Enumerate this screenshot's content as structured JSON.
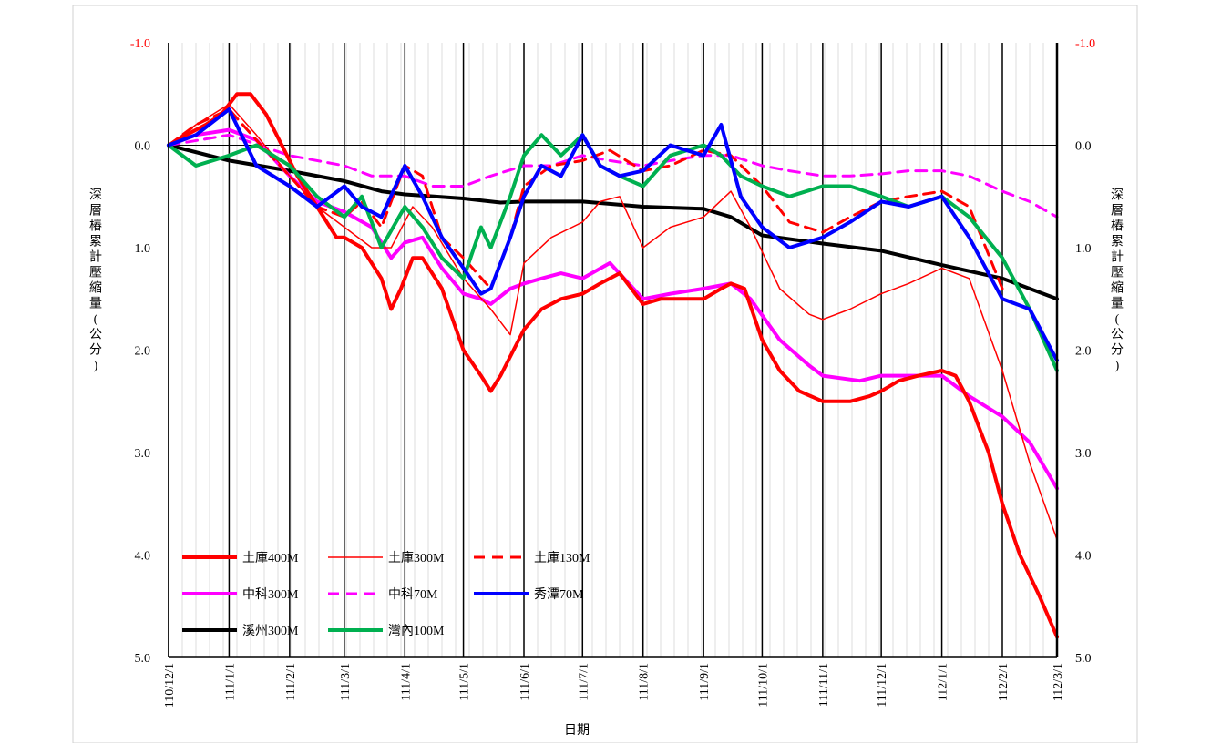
{
  "chart_data": {
    "type": "line",
    "title": "",
    "xlabel": "日期",
    "ylabel": "深層樁累計壓縮量(公分)",
    "ylabel_right": "深層樁累計壓縮量(公分)",
    "y_reversed": true,
    "ylim": [
      -1.0,
      5.0
    ],
    "yticks": [
      "-1.0",
      "0.0",
      "1.0",
      "2.0",
      "3.0",
      "4.0",
      "5.0"
    ],
    "x_start": "110/12/1",
    "x_end": "112/3/1",
    "xticks": [
      "110/12/1",
      "111/1/1",
      "111/2/1",
      "111/3/1",
      "111/4/1",
      "111/5/1",
      "111/6/1",
      "111/7/1",
      "111/8/1",
      "111/9/1",
      "111/10/1",
      "111/11/1",
      "111/12/1",
      "112/1/1",
      "112/2/1",
      "112/3/1"
    ],
    "grid": "vertical",
    "legend_position": "bottom-left",
    "series": [
      {
        "name": "土庫400M",
        "color": "#ff0000",
        "style": "solid-thick",
        "x": [
          "110/12/1",
          "110/12/10",
          "110/12/20",
          "110/12/28",
          "111/1/5",
          "111/1/12",
          "111/1/20",
          "111/1/28",
          "111/2/5",
          "111/2/15",
          "111/2/25",
          "111/3/1",
          "111/3/10",
          "111/3/20",
          "111/3/25",
          "111/3/30",
          "111/4/5",
          "111/4/10",
          "111/4/20",
          "111/5/1",
          "111/5/10",
          "111/5/15",
          "111/5/20",
          "111/5/28",
          "111/6/1",
          "111/6/10",
          "111/6/20",
          "111/7/1",
          "111/7/10",
          "111/7/20",
          "111/8/1",
          "111/8/10",
          "111/8/20",
          "111/9/1",
          "111/9/10",
          "111/9/15",
          "111/9/22",
          "111/10/1",
          "111/10/10",
          "111/10/20",
          "111/11/1",
          "111/11/15",
          "111/11/25",
          "111/12/1",
          "111/12/10",
          "111/12/20",
          "112/1/1",
          "112/1/8",
          "112/1/15",
          "112/1/25",
          "112/2/1",
          "112/2/10",
          "112/2/20",
          "112/3/1"
        ],
        "y": [
          0.0,
          -0.1,
          -0.2,
          -0.3,
          -0.5,
          -0.5,
          -0.3,
          0.0,
          0.3,
          0.6,
          0.9,
          0.9,
          1.0,
          1.3,
          1.6,
          1.4,
          1.1,
          1.1,
          1.4,
          2.0,
          2.25,
          2.4,
          2.25,
          1.95,
          1.8,
          1.6,
          1.5,
          1.45,
          1.35,
          1.25,
          1.55,
          1.5,
          1.5,
          1.5,
          1.4,
          1.35,
          1.4,
          1.9,
          2.2,
          2.4,
          2.5,
          2.5,
          2.45,
          2.4,
          2.3,
          2.25,
          2.2,
          2.25,
          2.5,
          3.0,
          3.5,
          4.0,
          4.4,
          4.8
        ]
      },
      {
        "name": "土庫300M",
        "color": "#ff0000",
        "style": "solid-thin",
        "x": [
          "110/12/1",
          "110/12/15",
          "111/1/1",
          "111/1/15",
          "111/2/1",
          "111/2/15",
          "111/3/1",
          "111/3/15",
          "111/3/25",
          "111/4/5",
          "111/4/15",
          "111/5/1",
          "111/5/15",
          "111/5/25",
          "111/6/1",
          "111/6/15",
          "111/7/1",
          "111/7/10",
          "111/7/20",
          "111/8/1",
          "111/8/15",
          "111/9/1",
          "111/9/15",
          "111/9/25",
          "111/10/10",
          "111/10/25",
          "111/11/1",
          "111/11/15",
          "111/12/1",
          "111/12/15",
          "112/1/1",
          "112/1/15",
          "112/2/1",
          "112/2/15",
          "112/3/1"
        ],
        "y": [
          0.0,
          -0.2,
          -0.4,
          -0.1,
          0.3,
          0.6,
          0.8,
          1.0,
          1.0,
          0.6,
          0.8,
          1.3,
          1.6,
          1.85,
          1.15,
          0.9,
          0.75,
          0.55,
          0.5,
          1.0,
          0.8,
          0.7,
          0.45,
          0.8,
          1.4,
          1.65,
          1.7,
          1.6,
          1.45,
          1.35,
          1.2,
          1.3,
          2.2,
          3.1,
          3.85
        ]
      },
      {
        "name": "土庫130M",
        "color": "#ff0000",
        "style": "dashed",
        "x": [
          "110/12/1",
          "110/12/15",
          "111/1/1",
          "111/1/15",
          "111/2/1",
          "111/2/15",
          "111/3/1",
          "111/3/10",
          "111/3/20",
          "111/4/1",
          "111/4/10",
          "111/4/20",
          "111/5/1",
          "111/5/15",
          "111/5/25",
          "111/6/1",
          "111/6/15",
          "111/7/1",
          "111/7/15",
          "111/8/1",
          "111/8/15",
          "111/9/1",
          "111/9/15",
          "111/10/1",
          "111/10/15",
          "111/11/1",
          "111/11/15",
          "111/12/1",
          "111/12/15",
          "112/1/1",
          "112/1/15",
          "112/2/1"
        ],
        "y": [
          0.0,
          -0.2,
          -0.35,
          -0.05,
          0.3,
          0.6,
          0.7,
          0.55,
          0.8,
          0.2,
          0.3,
          0.9,
          1.1,
          1.4,
          0.9,
          0.4,
          0.2,
          0.15,
          0.05,
          0.25,
          0.2,
          0.05,
          0.1,
          0.4,
          0.75,
          0.85,
          0.7,
          0.55,
          0.5,
          0.45,
          0.6,
          1.4
        ]
      },
      {
        "name": "中科300M",
        "color": "#ff00ff",
        "style": "solid-thick",
        "x": [
          "110/12/1",
          "110/12/15",
          "111/1/1",
          "111/1/15",
          "111/2/1",
          "111/2/15",
          "111/3/1",
          "111/3/15",
          "111/3/25",
          "111/4/1",
          "111/4/10",
          "111/4/20",
          "111/5/1",
          "111/5/10",
          "111/5/15",
          "111/5/25",
          "111/6/1",
          "111/6/10",
          "111/6/20",
          "111/7/1",
          "111/7/15",
          "111/8/1",
          "111/8/15",
          "111/9/1",
          "111/9/15",
          "111/9/25",
          "111/10/10",
          "111/10/25",
          "111/11/1",
          "111/11/20",
          "111/12/1",
          "111/12/15",
          "112/1/1",
          "112/1/15",
          "112/2/1",
          "112/2/15",
          "112/3/1"
        ],
        "y": [
          0.0,
          -0.1,
          -0.15,
          -0.05,
          0.3,
          0.55,
          0.65,
          0.8,
          1.1,
          0.95,
          0.9,
          1.2,
          1.45,
          1.5,
          1.55,
          1.4,
          1.35,
          1.3,
          1.25,
          1.3,
          1.15,
          1.5,
          1.45,
          1.4,
          1.35,
          1.5,
          1.9,
          2.15,
          2.25,
          2.3,
          2.25,
          2.25,
          2.25,
          2.45,
          2.65,
          2.9,
          3.35
        ]
      },
      {
        "name": "中科70M",
        "color": "#ff00ff",
        "style": "dashed",
        "x": [
          "110/12/1",
          "111/1/1",
          "111/2/1",
          "111/3/1",
          "111/3/15",
          "111/4/1",
          "111/4/15",
          "111/5/1",
          "111/5/15",
          "111/6/1",
          "111/6/15",
          "111/7/1",
          "111/7/15",
          "111/8/1",
          "111/8/15",
          "111/9/1",
          "111/9/15",
          "111/10/1",
          "111/10/15",
          "111/11/1",
          "111/11/15",
          "111/12/1",
          "111/12/15",
          "112/1/1",
          "112/1/15",
          "112/2/1",
          "112/2/15",
          "112/3/1"
        ],
        "y": [
          0.0,
          -0.1,
          0.1,
          0.2,
          0.3,
          0.3,
          0.4,
          0.4,
          0.3,
          0.2,
          0.2,
          0.1,
          0.15,
          0.2,
          0.15,
          0.1,
          0.1,
          0.2,
          0.25,
          0.3,
          0.3,
          0.28,
          0.25,
          0.25,
          0.3,
          0.45,
          0.55,
          0.7
        ]
      },
      {
        "name": "秀潭70M",
        "color": "#0000ff",
        "style": "solid-thick",
        "x": [
          "110/12/1",
          "110/12/15",
          "111/1/1",
          "111/1/15",
          "111/2/1",
          "111/2/15",
          "111/3/1",
          "111/3/10",
          "111/3/20",
          "111/4/1",
          "111/4/10",
          "111/4/20",
          "111/5/1",
          "111/5/10",
          "111/5/15",
          "111/5/25",
          "111/6/1",
          "111/6/10",
          "111/6/20",
          "111/7/1",
          "111/7/10",
          "111/7/20",
          "111/8/1",
          "111/8/15",
          "111/9/1",
          "111/9/10",
          "111/9/20",
          "111/10/1",
          "111/10/15",
          "111/11/1",
          "111/11/15",
          "111/12/1",
          "111/12/15",
          "112/1/1",
          "112/1/15",
          "112/2/1",
          "112/2/15",
          "112/3/1"
        ],
        "y": [
          0.0,
          -0.1,
          -0.35,
          0.2,
          0.4,
          0.6,
          0.4,
          0.6,
          0.7,
          0.2,
          0.5,
          0.9,
          1.2,
          1.45,
          1.4,
          0.9,
          0.5,
          0.2,
          0.3,
          -0.1,
          0.2,
          0.3,
          0.25,
          0.0,
          0.1,
          -0.2,
          0.5,
          0.8,
          1.0,
          0.9,
          0.75,
          0.55,
          0.6,
          0.5,
          0.9,
          1.5,
          1.6,
          2.1
        ]
      },
      {
        "name": "溪州300M",
        "color": "#000000",
        "style": "solid-thick",
        "x": [
          "110/12/1",
          "111/1/1",
          "111/2/1",
          "111/3/1",
          "111/3/20",
          "111/4/1",
          "111/5/1",
          "111/5/20",
          "111/6/1",
          "111/7/1",
          "111/8/1",
          "111/9/1",
          "111/9/15",
          "111/10/1",
          "111/11/1",
          "111/12/1",
          "112/1/1",
          "112/2/1",
          "112/3/1"
        ],
        "y": [
          0.0,
          0.15,
          0.25,
          0.35,
          0.45,
          0.48,
          0.52,
          0.56,
          0.55,
          0.55,
          0.6,
          0.62,
          0.7,
          0.88,
          0.96,
          1.03,
          1.17,
          1.3,
          1.5
        ]
      },
      {
        "name": "灣內100M",
        "color": "#00b050",
        "style": "solid-thick",
        "x": [
          "110/12/1",
          "110/12/15",
          "111/1/1",
          "111/1/15",
          "111/2/1",
          "111/2/15",
          "111/3/1",
          "111/3/10",
          "111/3/20",
          "111/4/1",
          "111/4/10",
          "111/4/20",
          "111/5/1",
          "111/5/10",
          "111/5/15",
          "111/5/25",
          "111/6/1",
          "111/6/10",
          "111/6/20",
          "111/7/1",
          "111/7/10",
          "111/7/20",
          "111/8/1",
          "111/8/15",
          "111/9/1",
          "111/9/10",
          "111/9/20",
          "111/10/1",
          "111/10/15",
          "111/11/1",
          "111/11/15",
          "111/12/1",
          "111/12/15",
          "112/1/1",
          "112/1/15",
          "112/2/1",
          "112/2/15",
          "112/3/1"
        ],
        "y": [
          0.0,
          0.2,
          0.1,
          0.0,
          0.2,
          0.5,
          0.7,
          0.5,
          1.0,
          0.6,
          0.8,
          1.1,
          1.3,
          0.8,
          1.0,
          0.5,
          0.1,
          -0.1,
          0.1,
          -0.1,
          0.2,
          0.3,
          0.4,
          0.1,
          0.0,
          0.1,
          0.3,
          0.4,
          0.5,
          0.4,
          0.4,
          0.5,
          0.6,
          0.5,
          0.7,
          1.1,
          1.6,
          2.2
        ]
      }
    ]
  }
}
